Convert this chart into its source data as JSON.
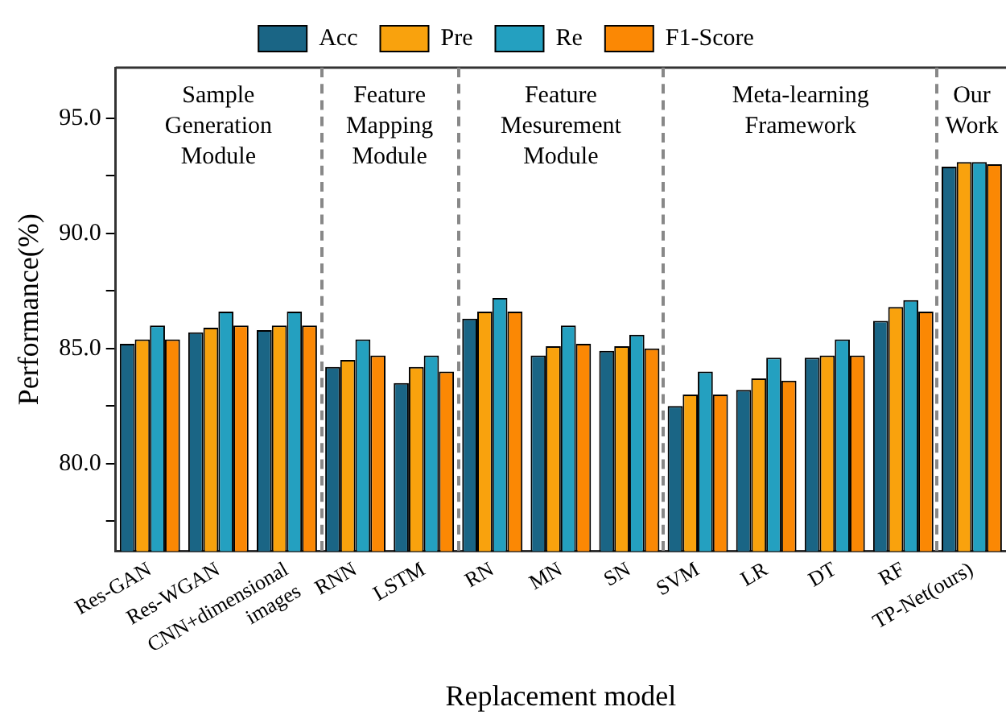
{
  "chart_data": {
    "type": "bar",
    "xlabel": "Replacement model",
    "ylabel": "Performance(%)",
    "categories": [
      "Res-GAN",
      "Res-WGAN",
      "CNN+dimensional\nimages",
      "RNN",
      "LSTM",
      "RN",
      "MN",
      "SN",
      "SVM",
      "LR",
      "DT",
      "RF",
      "TP-Net(ours)"
    ],
    "series": [
      {
        "name": "Acc",
        "color": "#1a6585",
        "values": [
          85.2,
          85.7,
          85.8,
          84.2,
          83.5,
          86.3,
          84.7,
          84.9,
          82.5,
          83.2,
          84.6,
          86.2,
          92.9
        ]
      },
      {
        "name": "Pre",
        "color": "#f9a20d",
        "values": [
          85.4,
          85.9,
          86.0,
          84.5,
          84.2,
          86.6,
          85.1,
          85.1,
          83.0,
          83.7,
          84.7,
          86.8,
          93.1
        ]
      },
      {
        "name": "Re",
        "color": "#24a0c0",
        "values": [
          86.0,
          86.6,
          86.6,
          85.4,
          84.7,
          87.2,
          86.0,
          85.6,
          84.0,
          84.6,
          85.4,
          87.1,
          93.1
        ]
      },
      {
        "name": "F1-Score",
        "color": "#fb8804",
        "values": [
          85.4,
          86.0,
          86.0,
          84.7,
          84.0,
          86.6,
          85.2,
          85.0,
          83.0,
          83.6,
          84.7,
          86.6,
          93.0
        ]
      }
    ],
    "ylim": [
      76.2,
      97.2
    ],
    "yticks": [
      {
        "value": 77.5,
        "label": null
      },
      {
        "value": 80,
        "label": "80.0"
      },
      {
        "value": 82.5,
        "label": null
      },
      {
        "value": 85,
        "label": "85.0"
      },
      {
        "value": 87.5,
        "label": null
      },
      {
        "value": 90,
        "label": "90.0"
      },
      {
        "value": 92.5,
        "label": null
      },
      {
        "value": 95,
        "label": "95.0"
      }
    ],
    "annotations": [
      "Sample\nGeneration\nModule",
      "Feature\nMapping\nModule",
      "Feature\nMesurement\nModule",
      "Meta-learning\nFramework",
      "Our\nWork"
    ],
    "grid": false,
    "legend": "top"
  }
}
